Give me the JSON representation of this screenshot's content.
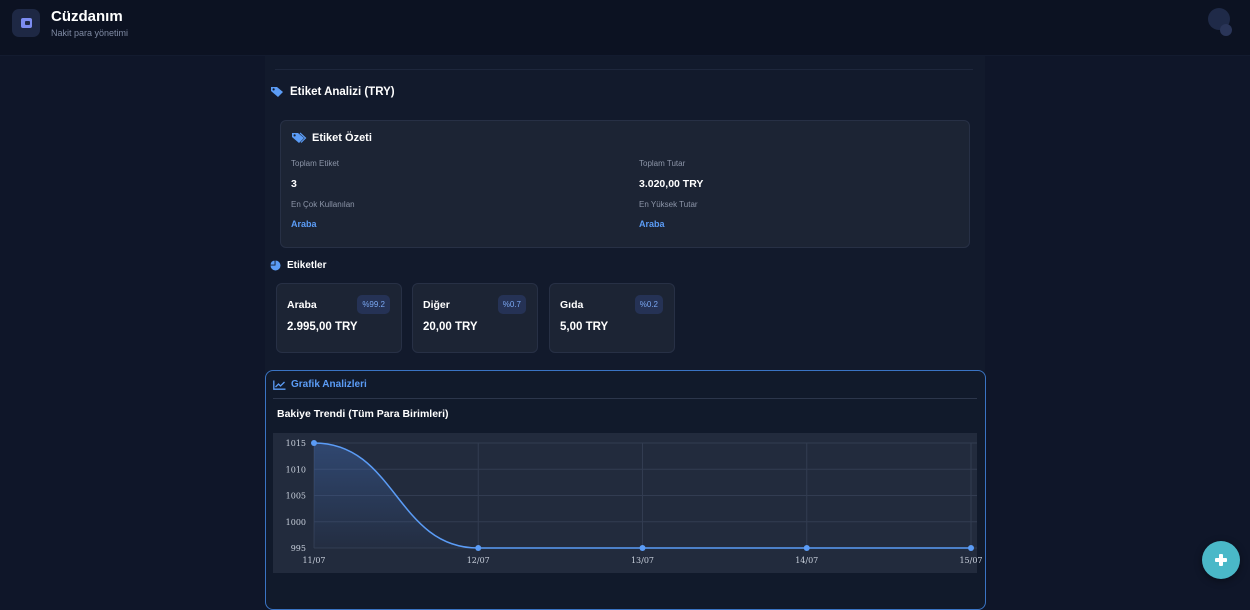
{
  "app": {
    "title": "Cüzdanım",
    "subtitle": "Nakit para yönetimi"
  },
  "tag_analysis": {
    "title": "Etiket Analizi (TRY)"
  },
  "summary": {
    "title": "Etiket Özeti",
    "total_tags_label": "Toplam Etiket",
    "total_tags_value": "3",
    "total_amount_label": "Toplam Tutar",
    "total_amount_value": "3.020,00 TRY",
    "most_used_label": "En Çok Kullanılan",
    "most_used_value": "Araba",
    "highest_label": "En Yüksek Tutar",
    "highest_value": "Araba"
  },
  "tags": {
    "title": "Etiketler",
    "items": [
      {
        "name": "Araba",
        "percent": "%99.2",
        "amount": "2.995,00 TRY"
      },
      {
        "name": "Diğer",
        "percent": "%0.7",
        "amount": "20,00 TRY"
      },
      {
        "name": "Gıda",
        "percent": "%0.2",
        "amount": "5,00 TRY"
      }
    ]
  },
  "charts": {
    "tab_label": "Grafik Analizleri",
    "trend_title": "Bakiye Trendi (Tüm Para Birimleri)"
  },
  "chart_data": {
    "type": "area",
    "categories": [
      "11/07",
      "12/07",
      "13/07",
      "14/07",
      "15/07"
    ],
    "values": [
      1015,
      995,
      995,
      995,
      995
    ],
    "yticks": [
      995,
      1000,
      1005,
      1010,
      1015
    ],
    "ylim": [
      995,
      1015
    ],
    "grid": true,
    "line_color": "#5b9cf6"
  },
  "colors": {
    "accent": "#5b9cf6",
    "fab": "#4ab8c8",
    "background": "#0f1629"
  },
  "icons": {
    "logo": "wallet-icon",
    "fab": "plus-icon"
  }
}
